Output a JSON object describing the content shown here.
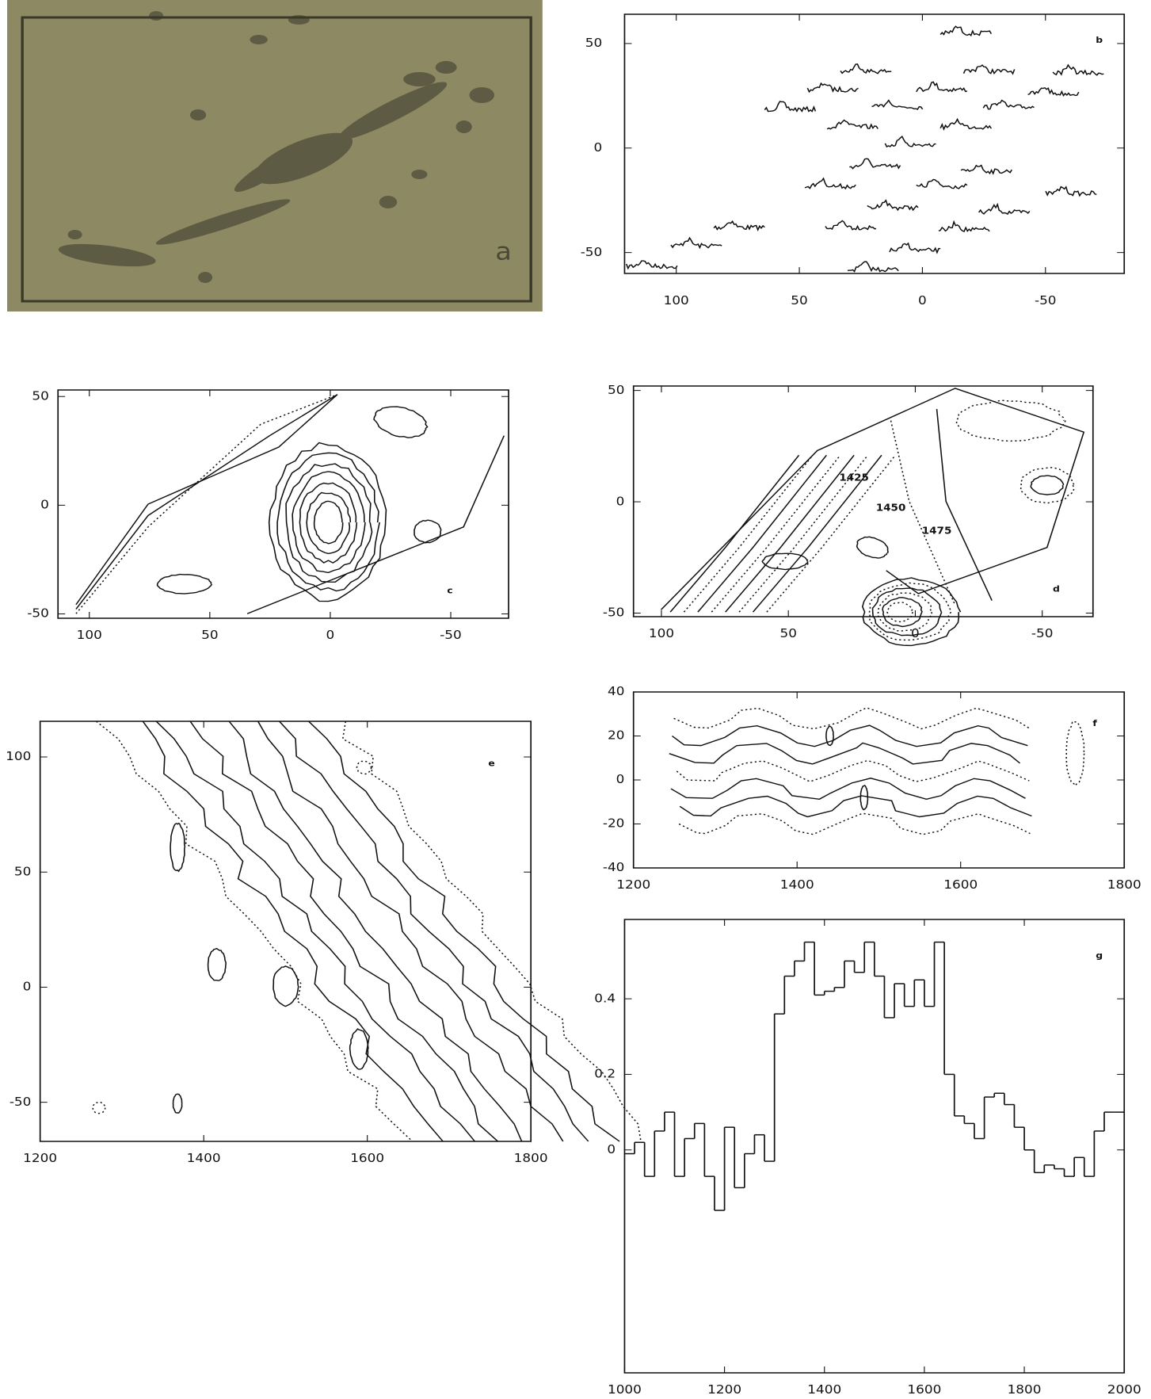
{
  "chart_data": [
    {
      "type": "image",
      "label": "a"
    },
    {
      "type": "spectra",
      "label": "b",
      "xlim": [
        121,
        -82
      ],
      "ylim": [
        64,
        -60
      ],
      "xticks": [
        100,
        50,
        0,
        -50
      ],
      "yticks": [
        50,
        0,
        -50
      ]
    },
    {
      "type": "contour",
      "label": "c",
      "xlim": [
        113,
        -74
      ],
      "ylim": [
        53,
        -52
      ],
      "xticks": [
        100,
        50,
        0,
        -50
      ],
      "yticks": [
        50,
        0,
        -50
      ]
    },
    {
      "type": "velocity-contour",
      "label": "d",
      "xlim": [
        111,
        -70
      ],
      "ylim": [
        52,
        -51.6
      ],
      "xticks": [
        100,
        50,
        0,
        -50
      ],
      "yticks": [
        50,
        0,
        -50
      ],
      "contour_labels": [
        "1425",
        "1450",
        "1475"
      ]
    },
    {
      "type": "pv-contour",
      "label": "e",
      "xlim": [
        1200,
        1800
      ],
      "ylim": [
        115.5,
        -67
      ],
      "xticks": [
        1200,
        1400,
        1600,
        1800
      ],
      "yticks": [
        100,
        50,
        0,
        -50
      ]
    },
    {
      "type": "pv-contour-small",
      "label": "f",
      "xlim": [
        1200,
        1800
      ],
      "ylim": [
        40,
        -40
      ],
      "xticks": [
        1200,
        1400,
        1600,
        1800
      ],
      "yticks": [
        40,
        20,
        0,
        -20,
        -40
      ]
    },
    {
      "type": "histogram",
      "label": "g",
      "xlim": [
        1000,
        2000
      ],
      "ylim": [
        0.61,
        -0.59
      ],
      "xticks": [
        1000,
        1200,
        1400,
        1600,
        1800,
        2000
      ],
      "yticks": [
        0.4,
        0.2,
        0
      ],
      "bins": [
        1000,
        1020,
        1040,
        1060,
        1080,
        1100,
        1120,
        1140,
        1160,
        1180,
        1200,
        1220,
        1240,
        1260,
        1280,
        1300,
        1320,
        1340,
        1360,
        1380,
        1400,
        1420,
        1440,
        1460,
        1480,
        1500,
        1520,
        1540,
        1560,
        1580,
        1600,
        1620,
        1640,
        1660,
        1680,
        1700,
        1720,
        1740,
        1760,
        1780,
        1800,
        1820,
        1840,
        1860,
        1880,
        1900,
        1920,
        1940,
        1960,
        1980,
        2000
      ],
      "values": [
        -0.01,
        0.02,
        -0.07,
        0.05,
        0.1,
        -0.07,
        0.03,
        0.07,
        -0.07,
        -0.16,
        0.06,
        -0.1,
        -0.01,
        0.04,
        -0.03,
        0.36,
        0.46,
        0.5,
        0.55,
        0.41,
        0.42,
        0.43,
        0.5,
        0.47,
        0.55,
        0.46,
        0.35,
        0.44,
        0.38,
        0.45,
        0.38,
        0.55,
        0.2,
        0.09,
        0.07,
        0.03,
        0.14,
        0.15,
        0.12,
        0.06,
        0.0,
        -0.06,
        -0.04,
        -0.05,
        -0.07,
        -0.02,
        -0.07,
        0.05,
        0.1,
        0.1
      ]
    }
  ]
}
